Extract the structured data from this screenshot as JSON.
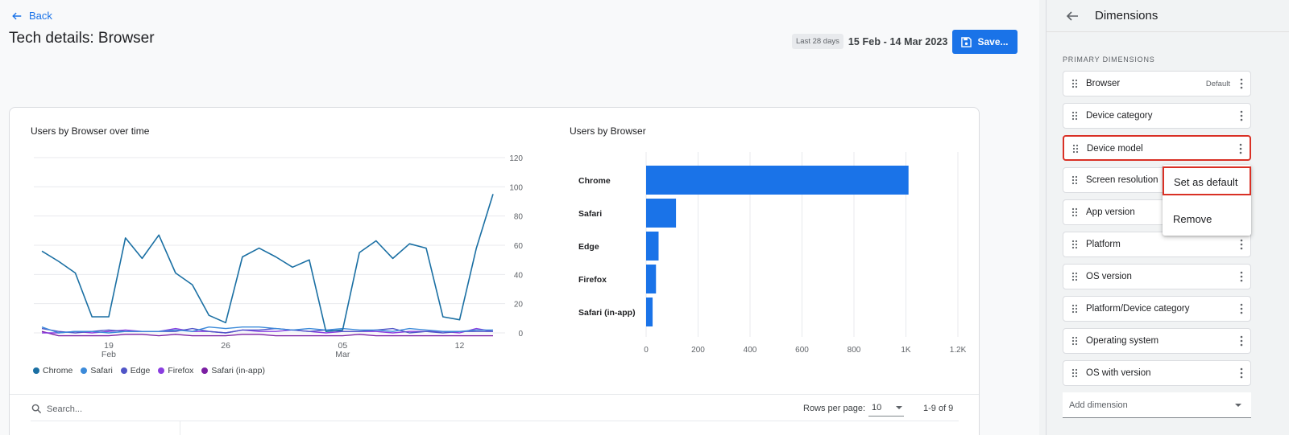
{
  "header": {
    "back_label": "Back",
    "title": "Tech details: Browser",
    "date_chip": "Last 28 days",
    "date_range": "15 Feb - 14 Mar 2023",
    "save_label": "Save..."
  },
  "charts": {
    "line_title": "Users by Browser over time",
    "bar_title": "Users by Browser"
  },
  "chart_data": [
    {
      "type": "line",
      "title": "Users by Browser over time",
      "x": [
        "15 Feb",
        "16 Feb",
        "17 Feb",
        "18 Feb",
        "19 Feb",
        "20 Feb",
        "21 Feb",
        "22 Feb",
        "23 Feb",
        "24 Feb",
        "25 Feb",
        "26 Feb",
        "27 Feb",
        "28 Feb",
        "1 Mar",
        "2 Mar",
        "3 Mar",
        "4 Mar",
        "5 Mar",
        "6 Mar",
        "7 Mar",
        "8 Mar",
        "9 Mar",
        "10 Mar",
        "11 Mar",
        "12 Mar",
        "13 Mar",
        "14 Mar"
      ],
      "x_tick_labels": [
        {
          "label": "19",
          "sub": "Feb",
          "index": 4
        },
        {
          "label": "26",
          "sub": "",
          "index": 11
        },
        {
          "label": "05",
          "sub": "Mar",
          "index": 18
        },
        {
          "label": "12",
          "sub": "",
          "index": 25
        }
      ],
      "yticks": [
        0,
        20,
        40,
        60,
        80,
        100,
        120
      ],
      "ylim": [
        0,
        120
      ],
      "y_axis_side": "right",
      "series": [
        {
          "name": "Chrome",
          "color": "#1a6fa3",
          "values": [
            56,
            49,
            41,
            11,
            11,
            65,
            51,
            67,
            41,
            33,
            12,
            7,
            52,
            58,
            52,
            45,
            50,
            1,
            2,
            55,
            63,
            51,
            61,
            58,
            11,
            9,
            58,
            95
          ]
        },
        {
          "name": "Safari",
          "color": "#3b8ad9",
          "values": [
            4,
            0,
            1,
            1,
            0,
            1,
            1,
            1,
            2,
            1,
            4,
            3,
            4,
            4,
            3,
            2,
            3,
            2,
            3,
            2,
            2,
            1,
            3,
            2,
            1,
            1,
            2,
            2
          ]
        },
        {
          "name": "Edge",
          "color": "#5055c7",
          "values": [
            3,
            1,
            0,
            1,
            2,
            1,
            1,
            1,
            1,
            3,
            1,
            0,
            2,
            2,
            3,
            2,
            1,
            2,
            1,
            1,
            2,
            3,
            0,
            1,
            0,
            1,
            1,
            1
          ]
        },
        {
          "name": "Firefox",
          "color": "#8a3ee0",
          "values": [
            0,
            0,
            1,
            0,
            1,
            2,
            1,
            1,
            3,
            1,
            1,
            0,
            2,
            1,
            1,
            2,
            1,
            0,
            1,
            1,
            1,
            0,
            1,
            1,
            1,
            0,
            3,
            1
          ]
        },
        {
          "name": "Safari (in-app)",
          "color": "#7b1fa2",
          "values": [
            1,
            -2,
            -2,
            -2,
            -2,
            -1,
            -1,
            -2,
            -1,
            -2,
            -2,
            -2,
            -1,
            -1,
            -2,
            -2,
            -2,
            -2,
            -2,
            -1,
            -2,
            -2,
            -2,
            -2,
            -2,
            -2,
            -2,
            -2
          ]
        }
      ],
      "grid": true,
      "legend": "bottom-left"
    },
    {
      "type": "bar",
      "orientation": "horizontal",
      "title": "Users by Browser",
      "categories": [
        "Chrome",
        "Safari",
        "Edge",
        "Firefox",
        "Safari (in-app)"
      ],
      "values": [
        1010,
        115,
        48,
        38,
        25
      ],
      "xticks": [
        "0",
        "200",
        "400",
        "600",
        "800",
        "1K",
        "1.2K"
      ],
      "xlim": [
        0,
        1200
      ],
      "color": "#1a73e8",
      "grid": true
    }
  ],
  "legend": {
    "items": [
      "Chrome",
      "Safari",
      "Edge",
      "Firefox",
      "Safari (in-app)"
    ],
    "colors": [
      "#1a6fa3",
      "#3b8ad9",
      "#5055c7",
      "#8a3ee0",
      "#7b1fa2"
    ]
  },
  "table_controls": {
    "search_placeholder": "Search...",
    "rows_per_page_label": "Rows per page:",
    "rows_per_page_value": "10",
    "pager_text": "1-9 of 9"
  },
  "panel": {
    "title": "Dimensions",
    "section_label": "PRIMARY DIMENSIONS",
    "items": [
      {
        "label": "Browser",
        "badge": "Default"
      },
      {
        "label": "Device category",
        "badge": ""
      },
      {
        "label": "Device model",
        "badge": ""
      },
      {
        "label": "Screen resolution",
        "badge": ""
      },
      {
        "label": "App version",
        "badge": ""
      },
      {
        "label": "Platform",
        "badge": ""
      },
      {
        "label": "OS version",
        "badge": ""
      },
      {
        "label": "Platform/Device category",
        "badge": ""
      },
      {
        "label": "Operating system",
        "badge": ""
      },
      {
        "label": "OS with version",
        "badge": ""
      }
    ],
    "add_dimension_placeholder": "Add dimension"
  },
  "context_menu": {
    "items": [
      "Set as default",
      "Remove"
    ]
  },
  "colors": {
    "accent": "#1a73e8",
    "highlight": "#d93025"
  }
}
